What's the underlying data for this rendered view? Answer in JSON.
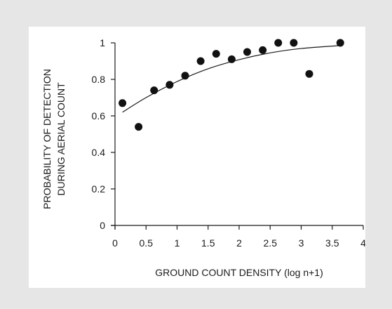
{
  "chart_data": {
    "type": "scatter",
    "xlabel": "GROUND COUNT DENSITY (log n+1)",
    "ylabel_lines": [
      "PROBABILITY OF DETECTION",
      "DURING AERIAL COUNT"
    ],
    "xlim": [
      0,
      4
    ],
    "ylim": [
      0,
      1
    ],
    "x_ticks": [
      0,
      0.5,
      1,
      1.5,
      2,
      2.5,
      3,
      3.5,
      4
    ],
    "x_tick_labels": [
      "0",
      "0.5",
      "1",
      "1.5",
      "2",
      "2.5",
      "3",
      "3.5",
      "4"
    ],
    "y_ticks": [
      0,
      0.2,
      0.4,
      0.6,
      0.8,
      1
    ],
    "y_tick_labels": [
      "0",
      "0.2",
      "0.4",
      "0.6",
      "0.8",
      "1"
    ],
    "grid": false,
    "points": [
      {
        "x": 0.12,
        "y": 0.67
      },
      {
        "x": 0.38,
        "y": 0.54
      },
      {
        "x": 0.63,
        "y": 0.74
      },
      {
        "x": 0.88,
        "y": 0.77
      },
      {
        "x": 1.13,
        "y": 0.82
      },
      {
        "x": 1.38,
        "y": 0.9
      },
      {
        "x": 1.63,
        "y": 0.94
      },
      {
        "x": 1.88,
        "y": 0.91
      },
      {
        "x": 2.13,
        "y": 0.95
      },
      {
        "x": 2.38,
        "y": 0.96
      },
      {
        "x": 2.63,
        "y": 1.0
      },
      {
        "x": 2.88,
        "y": 1.0
      },
      {
        "x": 3.13,
        "y": 0.83
      },
      {
        "x": 3.63,
        "y": 1.0
      }
    ],
    "fit_curve": [
      {
        "x": 0.12,
        "y": 0.62
      },
      {
        "x": 0.5,
        "y": 0.7
      },
      {
        "x": 1.0,
        "y": 0.788
      },
      {
        "x": 1.5,
        "y": 0.858
      },
      {
        "x": 2.0,
        "y": 0.908
      },
      {
        "x": 2.5,
        "y": 0.945
      },
      {
        "x": 3.0,
        "y": 0.969
      },
      {
        "x": 3.63,
        "y": 0.985
      }
    ]
  }
}
